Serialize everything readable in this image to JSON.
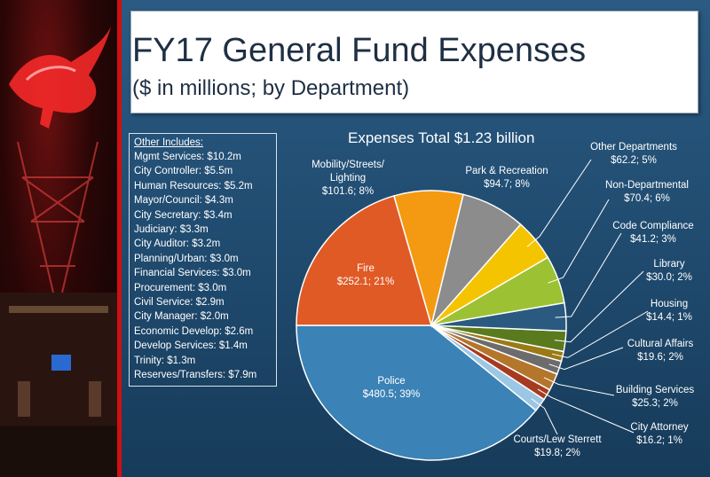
{
  "title": {
    "main": "FY17 General Fund Expenses",
    "sub": "($ in millions; by Department)"
  },
  "other_includes": {
    "title": "Other Includes:",
    "items": [
      "Mgmt Services: $10.2m",
      "City Controller: $5.5m",
      "Human Resources: $5.2m",
      "Mayor/Council: $4.3m",
      "City Secretary: $3.4m",
      "Judiciary: $3.3m",
      "City Auditor: $3.2m",
      "Planning/Urban: $3.0m",
      "Financial Services: $3.0m",
      "Procurement: $3.0m",
      "Civil Service: $2.9m",
      "City Manager: $2.0m",
      "Economic Develop: $2.6m",
      "Develop Services: $1.4m",
      "Trinity: $1.3m",
      "Reserves/Transfers:  $7.9m"
    ]
  },
  "chart_data": {
    "type": "pie",
    "title": "Expenses Total $1.23 billion",
    "start": "Police slice begins at 9 o'clock, proceeding counter-clockwise",
    "slices": [
      {
        "name": "Police",
        "value": 480.5,
        "percent": 39,
        "label_lines": [
          "Police",
          "$480.5; 39%"
        ],
        "color": "#3b82b6",
        "label_color": "#ffffff"
      },
      {
        "name": "Courts/Lew Sterrett",
        "value": 19.8,
        "percent": 2,
        "label_lines": [
          "Courts/Lew Sterrett",
          "$19.8; 2%"
        ],
        "color": "#9cc7e4",
        "label_color": "#ffffff"
      },
      {
        "name": "City Attorney",
        "value": 16.2,
        "percent": 1,
        "label_lines": [
          "City Attorney",
          "$16.2; 1%"
        ],
        "color": "#a63b20",
        "label_color": "#ffffff"
      },
      {
        "name": "Building Services",
        "value": 25.3,
        "percent": 2,
        "label_lines": [
          "Building Services",
          "$25.3; 2%"
        ],
        "color": "#b4762a",
        "label_color": "#ffffff"
      },
      {
        "name": "Cultural Affairs",
        "value": 19.6,
        "percent": 2,
        "label_lines": [
          "Cultural Affairs",
          "$19.6; 2%"
        ],
        "color": "#6c6c6c",
        "label_color": "#ffffff"
      },
      {
        "name": "Housing",
        "value": 14.4,
        "percent": 1,
        "label_lines": [
          "Housing",
          "$14.4; 1%"
        ],
        "color": "#9a7a14",
        "label_color": "#ffffff"
      },
      {
        "name": "Library",
        "value": 30.0,
        "percent": 2,
        "label_lines": [
          "Library",
          "$30.0; 2%"
        ],
        "color": "#5a7a1e",
        "label_color": "#ffffff"
      },
      {
        "name": "Code Compliance",
        "value": 41.2,
        "percent": 3,
        "label_lines": [
          "Code Compliance",
          "$41.2; 3%"
        ],
        "color": "#2a5a80",
        "label_color": "#ffffff"
      },
      {
        "name": "Non-Departmental",
        "value": 70.4,
        "percent": 6,
        "label_lines": [
          "Non-Departmental",
          "$70.4; 6%"
        ],
        "color": "#9cc233",
        "label_color": "#ffffff"
      },
      {
        "name": "Other Departments",
        "value": 62.2,
        "percent": 5,
        "label_lines": [
          "Other Departments",
          "$62.2; 5%"
        ],
        "color": "#f5c400",
        "label_color": "#ffffff"
      },
      {
        "name": "Park & Recreation",
        "value": 94.7,
        "percent": 8,
        "label_lines": [
          "Park & Recreation",
          "$94.7;  8%"
        ],
        "color": "#8c8c8c",
        "label_color": "#ffffff"
      },
      {
        "name": "Mobility/Streets/Lighting",
        "value": 101.6,
        "percent": 8,
        "label_lines": [
          "Mobility/Streets/",
          "Lighting",
          "$101.6; 8%"
        ],
        "color": "#f39a12",
        "label_color": "#ffffff"
      },
      {
        "name": "Fire",
        "value": 252.1,
        "percent": 21,
        "label_lines": [
          "Fire",
          "$252.1; 21%"
        ],
        "color": "#e05a26",
        "label_color": "#ffffff"
      }
    ]
  }
}
